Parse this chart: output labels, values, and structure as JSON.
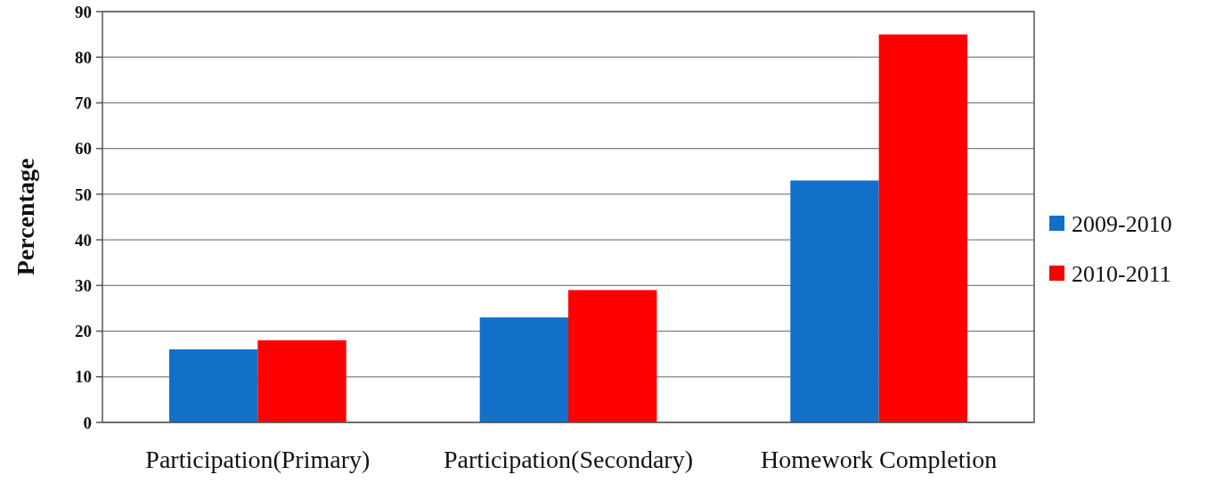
{
  "chart_data": {
    "type": "bar",
    "ylabel": "Percentage",
    "categories": [
      "Participation(Primary)",
      "Participation(Secondary)",
      "Homework Completion"
    ],
    "series": [
      {
        "name": "2009-2010",
        "color": "#1170c8",
        "values": [
          16,
          23,
          53
        ]
      },
      {
        "name": "2010-2011",
        "color": "#fe0000",
        "values": [
          18,
          29,
          85
        ]
      }
    ],
    "ylim": [
      0,
      90
    ],
    "yticks": [
      0,
      10,
      20,
      30,
      40,
      50,
      60,
      70,
      80,
      90
    ],
    "grid": "y",
    "legend": "right"
  }
}
